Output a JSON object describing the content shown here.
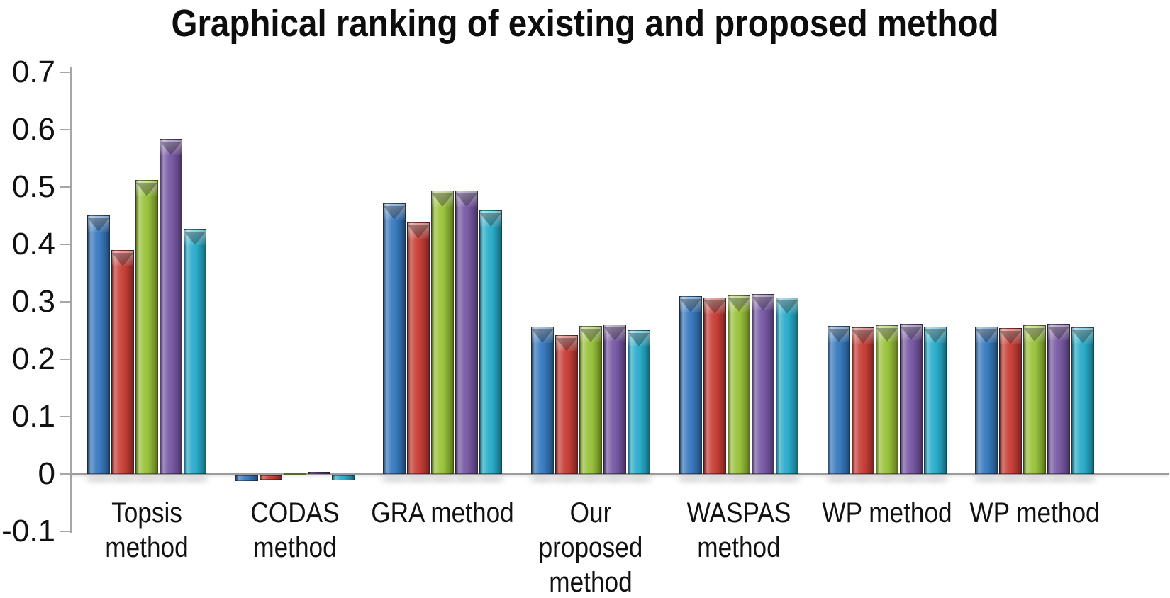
{
  "chart_data": {
    "type": "bar",
    "title": "Graphical ranking of existing and proposed method",
    "xlabel": "",
    "ylabel": "",
    "ylim": [
      -0.1,
      0.7
    ],
    "ytick_labels": [
      "0.7",
      "0.6",
      "0.5",
      "0.4",
      "0.3",
      "0.2",
      "0.1",
      "0",
      "-0.1"
    ],
    "ytick_values": [
      0.7,
      0.6,
      0.5,
      0.4,
      0.3,
      0.2,
      0.1,
      0,
      -0.1
    ],
    "grid": false,
    "legend_position": "none",
    "categories": [
      "Topsis method",
      "CODAS method",
      "GRA method",
      "Our proposed method",
      "WASPAS method",
      "WP method",
      "WP method"
    ],
    "category_label_lines": [
      [
        "Topsis",
        "method"
      ],
      [
        "CODAS",
        "method"
      ],
      [
        "GRA method"
      ],
      [
        "Our",
        "proposed",
        "method"
      ],
      [
        "WASPAS",
        "method"
      ],
      [
        "WP method"
      ],
      [
        "WP method"
      ]
    ],
    "series": [
      {
        "name": "blue",
        "color": "#3B7CC1",
        "values": [
          0.451,
          -0.01,
          0.472,
          0.257,
          0.31,
          0.258,
          0.257
        ]
      },
      {
        "name": "red",
        "color": "#C9413A",
        "values": [
          0.39,
          -0.007,
          0.438,
          0.242,
          0.307,
          0.256,
          0.254
        ]
      },
      {
        "name": "green",
        "color": "#9BC33C",
        "values": [
          0.512,
          0.001,
          0.494,
          0.258,
          0.311,
          0.259,
          0.259
        ]
      },
      {
        "name": "purple",
        "color": "#7A5BA6",
        "values": [
          0.584,
          0.004,
          0.494,
          0.26,
          0.314,
          0.262,
          0.262
        ]
      },
      {
        "name": "cyan",
        "color": "#2BAECB",
        "values": [
          0.427,
          -0.009,
          0.459,
          0.25,
          0.307,
          0.257,
          0.256
        ]
      }
    ]
  }
}
